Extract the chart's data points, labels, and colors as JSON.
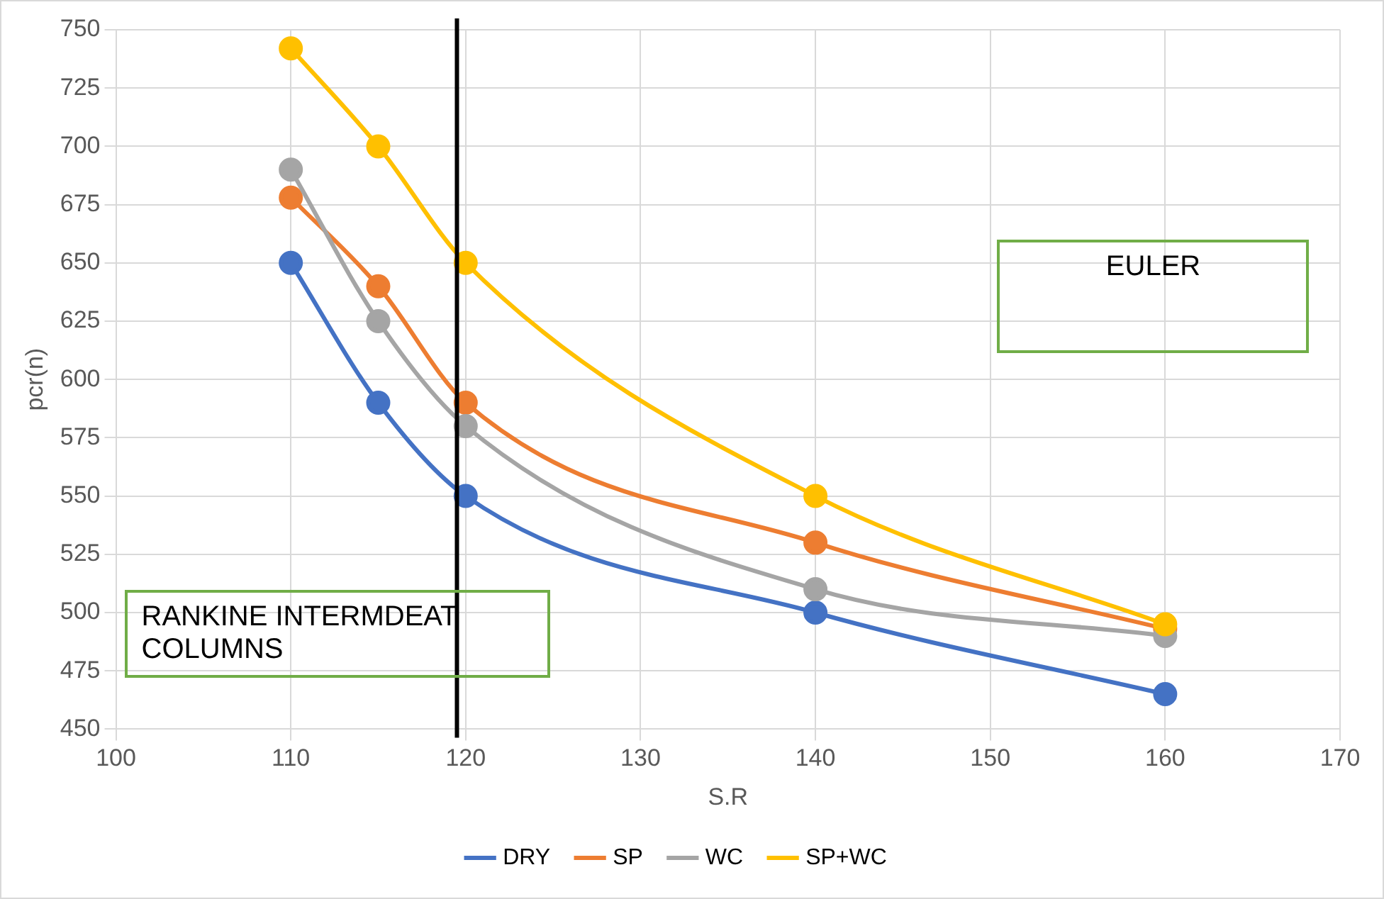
{
  "chart_data": {
    "type": "line",
    "xlabel": "S.R",
    "ylabel": "pcr(n)",
    "x": [
      110,
      115,
      120,
      140,
      160
    ],
    "series": [
      {
        "name": "DRY",
        "color": "#4472c4",
        "values": [
          650,
          590,
          550,
          500,
          465
        ]
      },
      {
        "name": "SP",
        "color": "#ed7d31",
        "values": [
          678,
          640,
          590,
          530,
          493
        ]
      },
      {
        "name": "WC",
        "color": "#a5a5a5",
        "values": [
          690,
          625,
          580,
          510,
          490
        ]
      },
      {
        "name": "SP+WC",
        "color": "#ffc000",
        "values": [
          742,
          700,
          650,
          550,
          495
        ]
      }
    ],
    "xlim": [
      100,
      170
    ],
    "xticks": [
      100,
      110,
      120,
      130,
      140,
      150,
      160,
      170
    ],
    "ylim": [
      450,
      750
    ],
    "yticks": [
      450,
      475,
      500,
      525,
      550,
      575,
      600,
      625,
      650,
      675,
      700,
      725,
      750
    ],
    "ref_lines": [
      {
        "axis": "x",
        "value": 119.5,
        "color": "#000000"
      }
    ],
    "annotations": [
      "EULER",
      "RANKINE INTERMDEAT COLUMNS"
    ],
    "grid": true,
    "legend": "bottom",
    "marker": "circle",
    "line_style": "solid"
  }
}
